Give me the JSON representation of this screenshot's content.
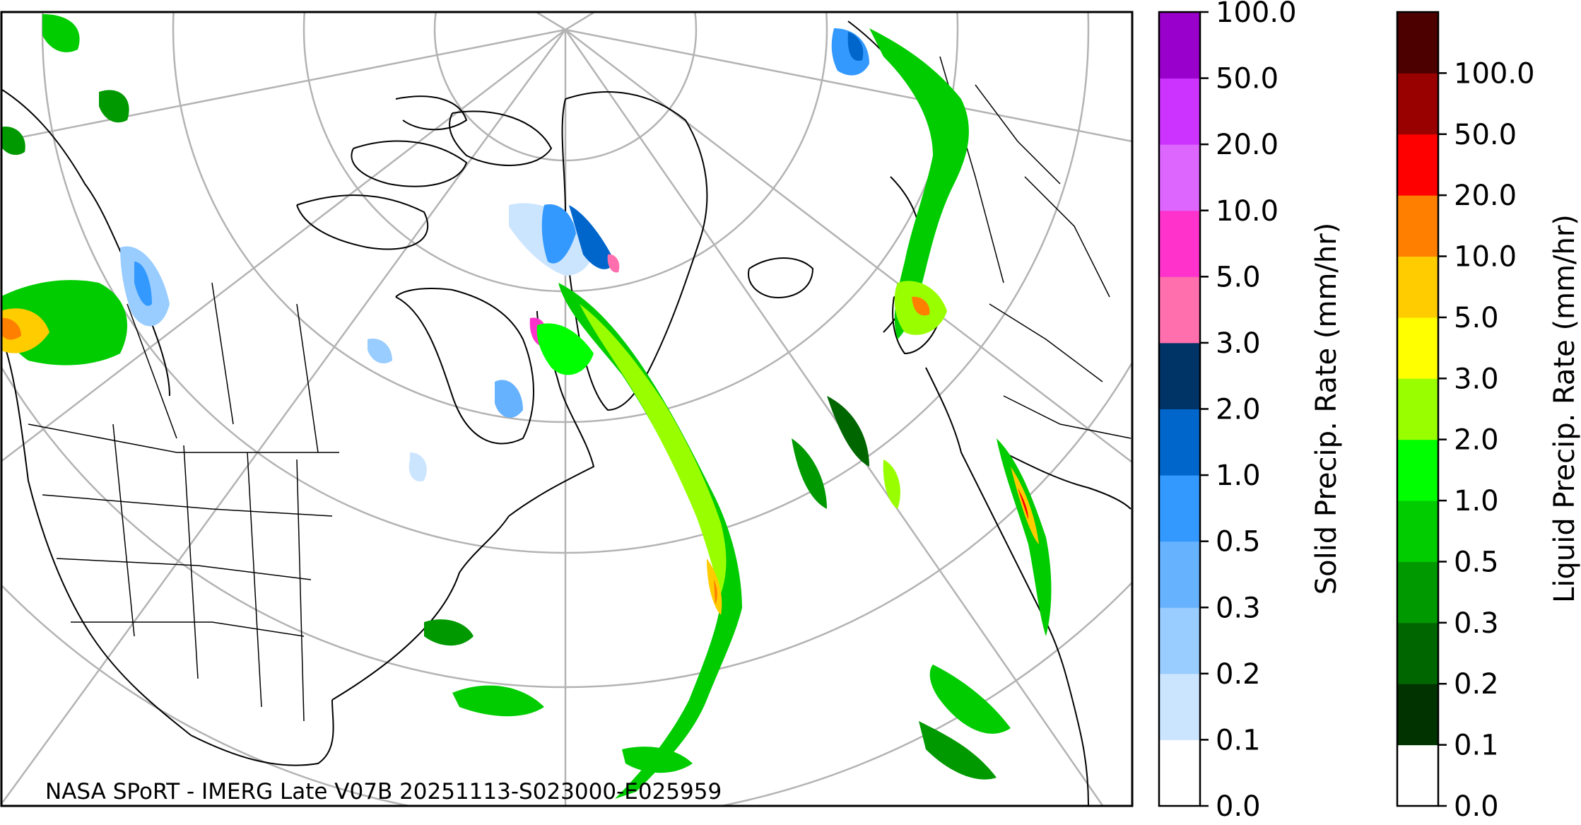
{
  "map": {
    "credit": "NASA SPoRT - IMERG Late V07B 20251113-S023000-E025959"
  },
  "solid_colorbar": {
    "label": "Solid Precip. Rate (mm/hr)",
    "ticks": [
      "0.0",
      "0.1",
      "0.2",
      "0.3",
      "0.5",
      "1.0",
      "2.0",
      "3.0",
      "5.0",
      "10.0",
      "20.0",
      "50.0",
      "100.0"
    ],
    "colors": [
      "#ffffff",
      "#cce5ff",
      "#99ccff",
      "#66b2ff",
      "#3399ff",
      "#0066cc",
      "#003366",
      "#ff6fae",
      "#ff33cc",
      "#dd66ff",
      "#cc33ff",
      "#9900cc"
    ]
  },
  "liquid_colorbar": {
    "label": "Liquid Precip. Rate (mm/hr)",
    "ticks": [
      "0.0",
      "0.1",
      "0.2",
      "0.3",
      "0.5",
      "1.0",
      "2.0",
      "3.0",
      "5.0",
      "10.0",
      "20.0",
      "50.0",
      "100.0"
    ],
    "colors": [
      "#ffffff",
      "#003300",
      "#006600",
      "#009900",
      "#00cc00",
      "#00ff00",
      "#99ff00",
      "#ffff00",
      "#ffcc00",
      "#ff7f00",
      "#ff0000",
      "#990000",
      "#4d0000"
    ]
  }
}
